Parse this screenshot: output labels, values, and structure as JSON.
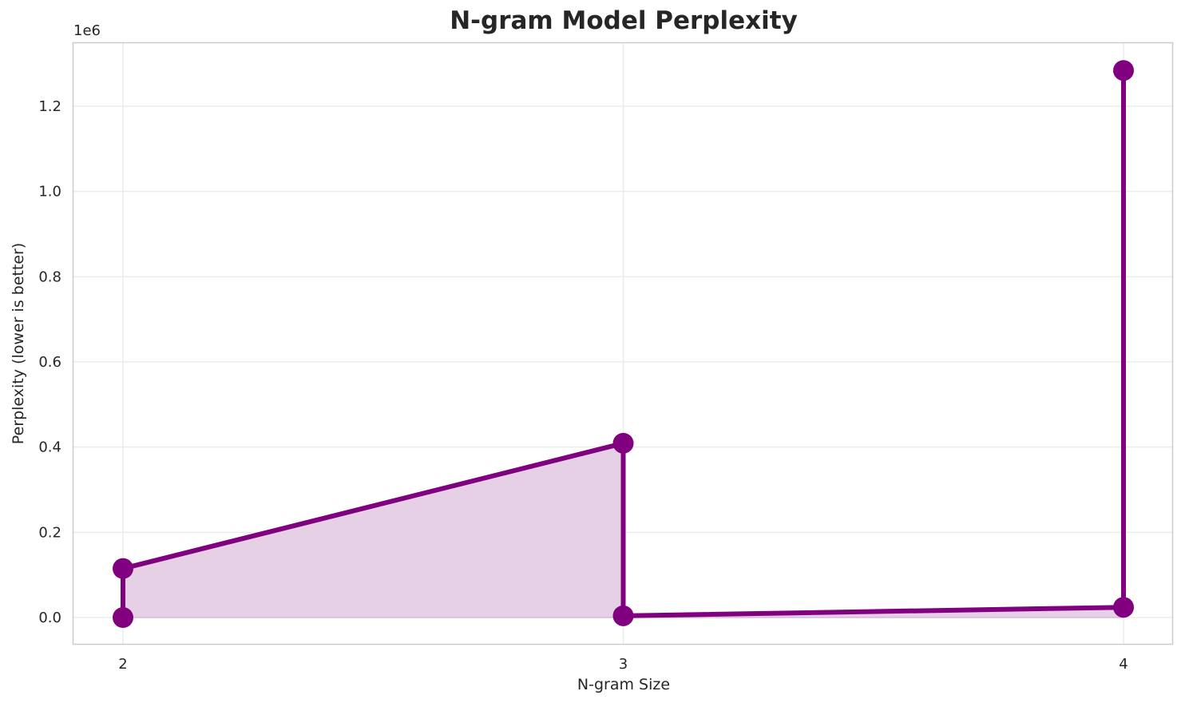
{
  "chart_data": {
    "type": "line",
    "title": "N-gram Model Perplexity",
    "xlabel": "N-gram Size",
    "ylabel": "Perplexity (lower is better)",
    "y_offset_label": "1e6",
    "x_ticks": [
      "2",
      "3",
      "4"
    ],
    "y_ticks": [
      "0.0",
      "0.2",
      "0.4",
      "0.6",
      "0.8",
      "1.0",
      "1.2"
    ],
    "ylim": [
      -62000,
      1350000
    ],
    "xlim": [
      1.9,
      4.1
    ],
    "grid": true,
    "fill_under_line": true,
    "line_color": "#800080",
    "fill_color": "#e2cbe2",
    "points": [
      {
        "x": 2,
        "y": 0
      },
      {
        "x": 2,
        "y": 115000
      },
      {
        "x": 3,
        "y": 409000
      },
      {
        "x": 3,
        "y": 4000
      },
      {
        "x": 4,
        "y": 24000
      },
      {
        "x": 4,
        "y": 1284000
      }
    ]
  }
}
